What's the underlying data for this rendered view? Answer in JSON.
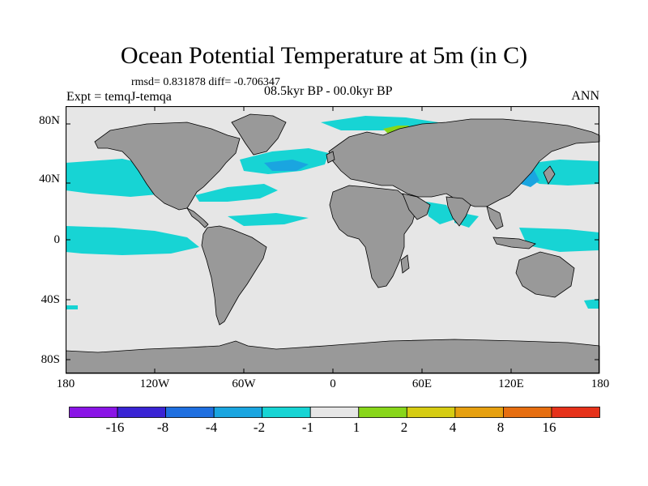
{
  "header": {
    "title": "Ocean Potential Temperature at 5m (in C)",
    "stats": "rmsd= 0.831878 diff= -0.706347",
    "experiment": "Expt = temqJ-temqa",
    "period": "08.5kyr BP - 00.0kyr BP",
    "season": "ANN"
  },
  "axes": {
    "y_ticks": [
      {
        "label": "80N",
        "lat": 80
      },
      {
        "label": "40N",
        "lat": 40
      },
      {
        "label": "0",
        "lat": 0
      },
      {
        "label": "40S",
        "lat": -40
      },
      {
        "label": "80S",
        "lat": -80
      }
    ],
    "x_ticks": [
      {
        "label": "180",
        "lon": -180
      },
      {
        "label": "120W",
        "lon": -120
      },
      {
        "label": "60W",
        "lon": -60
      },
      {
        "label": "0",
        "lon": 0
      },
      {
        "label": "60E",
        "lon": 60
      },
      {
        "label": "120E",
        "lon": 120
      },
      {
        "label": "180",
        "lon": 180
      }
    ]
  },
  "colorbar": {
    "colors": [
      "#8a14e6",
      "#3a24d4",
      "#1f6fe0",
      "#1aa5e0",
      "#17d4d4",
      "#e6e6e6",
      "#88d61a",
      "#d6cc12",
      "#e6a010",
      "#e66e10",
      "#e6321a"
    ],
    "labels": [
      "-16",
      "-8",
      "-4",
      "-2",
      "-1",
      "1",
      "2",
      "4",
      "8",
      "16"
    ]
  },
  "colors": {
    "land": "#999999",
    "ocean_neutral": "#e6e6e6",
    "anomaly_cyan": "#17d4d4",
    "anomaly_light_blue": "#1aa5e0",
    "anomaly_green": "#88d61a"
  }
}
